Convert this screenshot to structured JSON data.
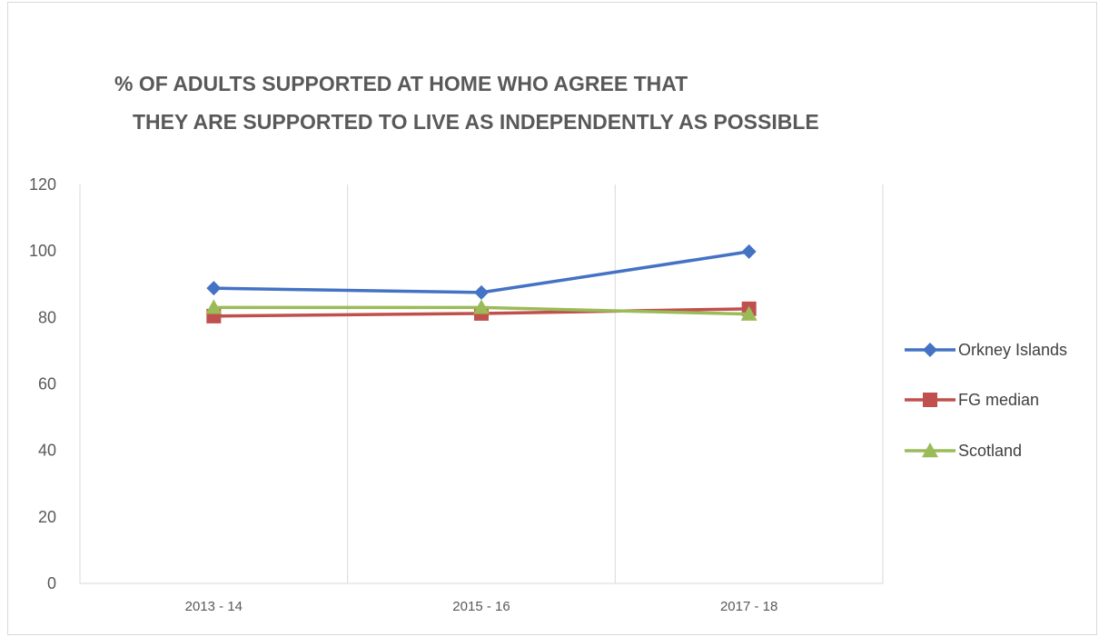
{
  "chart_data": {
    "type": "line",
    "title_lines": [
      "%  OF  ADULTS SUPPORTED AT  HOME WHO AGREE  THAT",
      "THEY ARE SUPPORTED TO LIVE AS INDEPENDENTLY AS POSSIBLE"
    ],
    "categories": [
      "2013 - 14",
      "2015 - 16",
      "2017 - 18"
    ],
    "ylim": [
      0,
      120
    ],
    "yticks": [
      0,
      20,
      40,
      60,
      80,
      100,
      120
    ],
    "grid": "vertical",
    "legend_position": "right",
    "series": [
      {
        "name": "Orkney Islands",
        "values": [
          88.8,
          87.5,
          99.8
        ],
        "color": "#4472c4",
        "marker": "diamond"
      },
      {
        "name": "FG median",
        "values": [
          80.4,
          81.2,
          82.6
        ],
        "color": "#c0504d",
        "marker": "square"
      },
      {
        "name": "Scotland",
        "values": [
          83.0,
          83.0,
          81.0
        ],
        "color": "#9bbb59",
        "marker": "triangle"
      }
    ]
  }
}
